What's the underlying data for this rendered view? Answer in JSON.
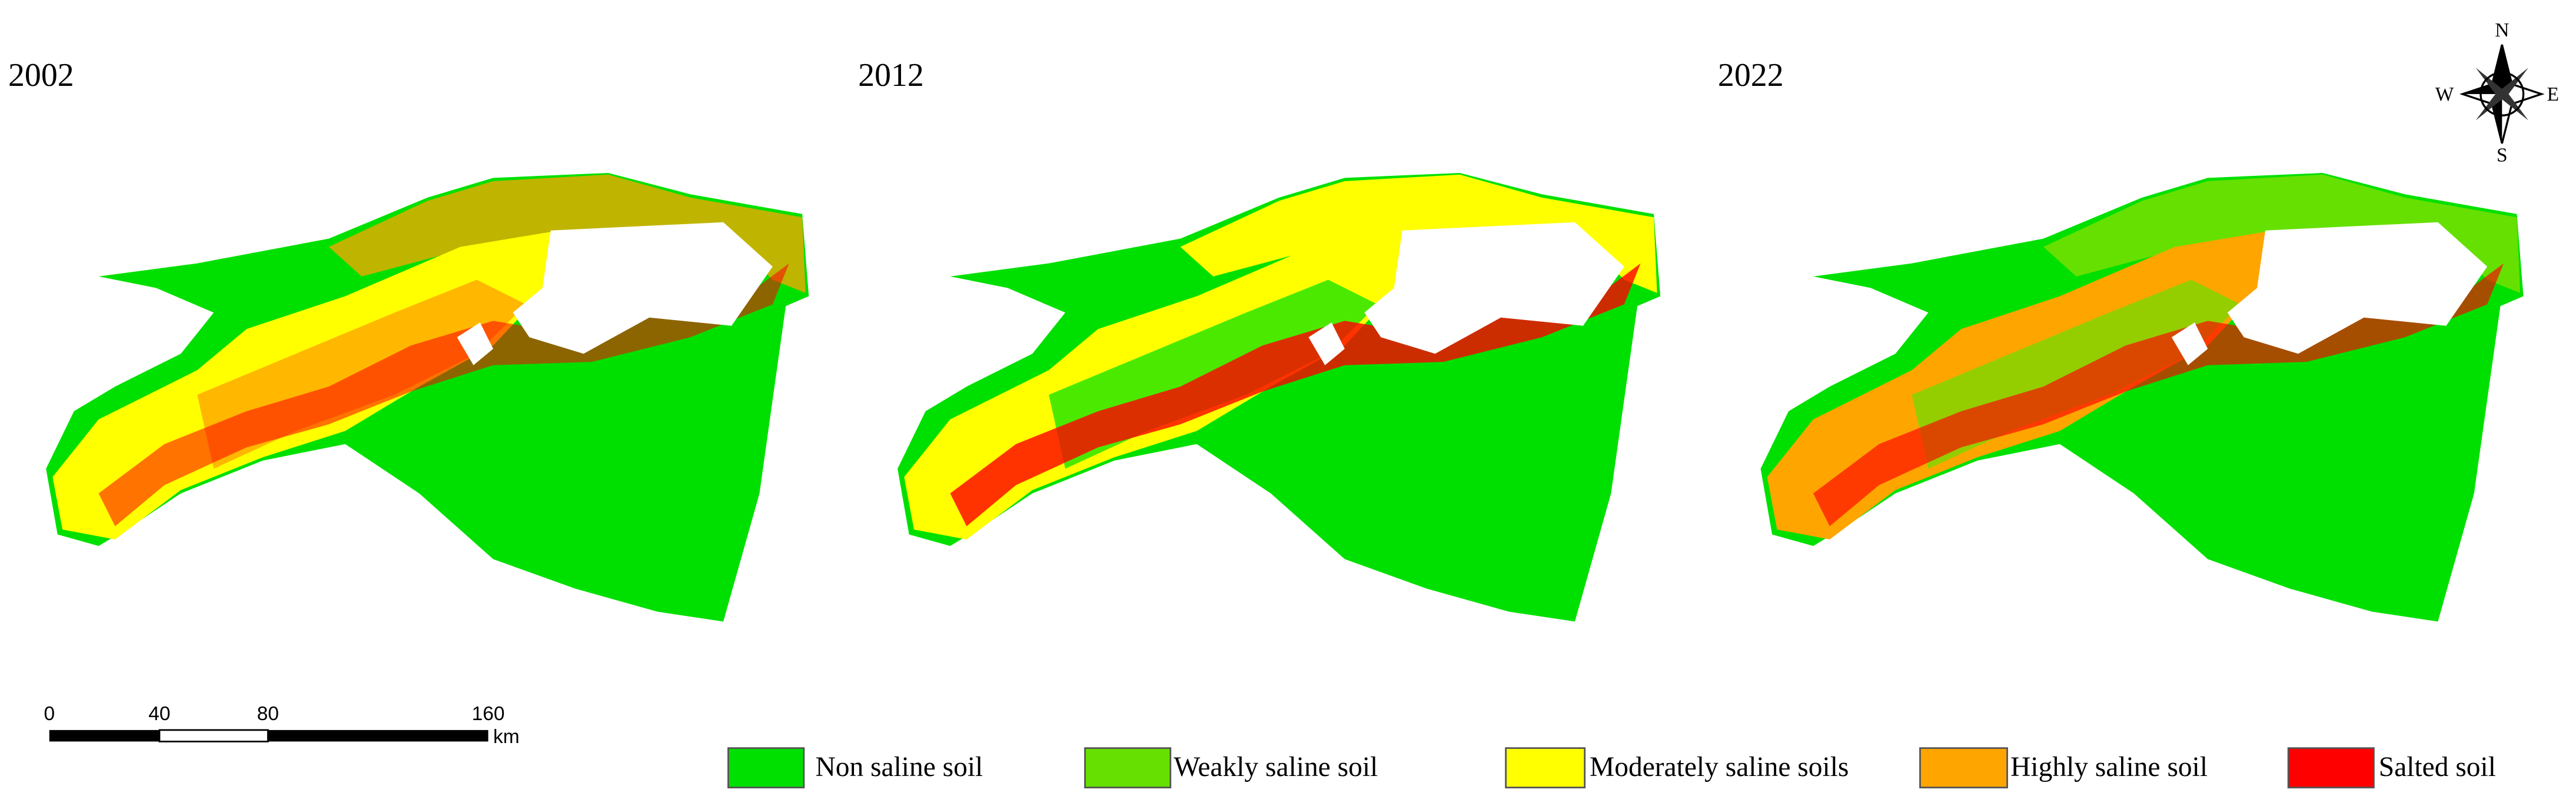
{
  "panels": [
    {
      "title": "2002"
    },
    {
      "title": "2012"
    },
    {
      "title": "2022"
    }
  ],
  "compass": {
    "n": "N",
    "e": "E",
    "s": "S",
    "w": "W"
  },
  "scale_bar": {
    "ticks": [
      "0",
      "40",
      "80",
      "160"
    ],
    "unit": "km"
  },
  "legend": [
    {
      "label": "Non saline soil",
      "color": "#00e000"
    },
    {
      "label": "Weakly saline soil",
      "color": "#66e000"
    },
    {
      "label": "Moderately saline soils",
      "color": "#ffff00"
    },
    {
      "label": "Highly saline soil",
      "color": "#ffa500"
    },
    {
      "label": "Salted soil",
      "color": "#ff0000"
    }
  ]
}
